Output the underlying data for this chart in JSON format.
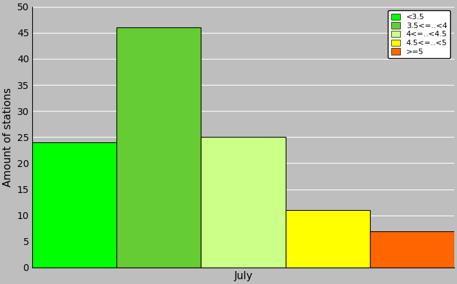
{
  "bars": [
    {
      "label": "<3.5",
      "value": 24,
      "color": "#00FF00"
    },
    {
      "label": "3.5<=..<4",
      "value": 46,
      "color": "#66CC33"
    },
    {
      "label": "4<=..<4.5",
      "value": 25,
      "color": "#CCFF88"
    },
    {
      "label": "4.5<=..<5",
      "value": 11,
      "color": "#FFFF00"
    },
    {
      "label": ">=5",
      "value": 7,
      "color": "#FF6600"
    }
  ],
  "ylabel": "Amount of stations",
  "xlabel": "July",
  "ylim": [
    0,
    50
  ],
  "yticks": [
    0,
    5,
    10,
    15,
    20,
    25,
    30,
    35,
    40,
    45,
    50
  ],
  "bg_color": "#BEBEBE",
  "grid_color": "#FFFFFF"
}
